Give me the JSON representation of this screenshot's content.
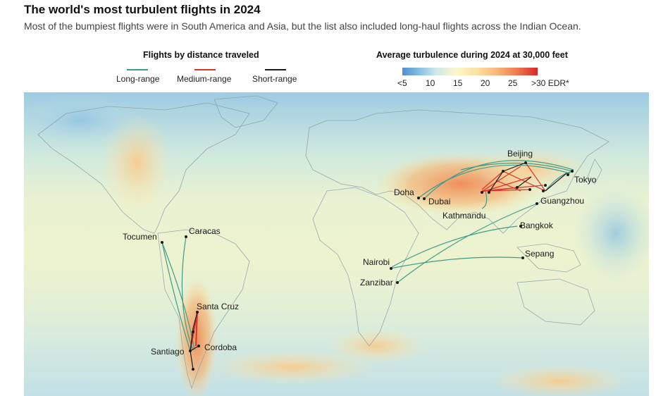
{
  "header": {
    "title": "The world's most turbulent flights in 2024",
    "subtitle": "Most of the bumpiest flights were in South America and Asia, but the list also included long-haul flights across the Indian Ocean."
  },
  "legend_routes": {
    "title": "Flights by distance traveled",
    "items": [
      {
        "label": "Long-range",
        "color": "#3f9c8a"
      },
      {
        "label": "Medium-range",
        "color": "#d8342b"
      },
      {
        "label": "Short-range",
        "color": "#1a1a1a"
      }
    ]
  },
  "legend_scale": {
    "title": "Average turbulence during 2024 at 30,000 feet",
    "ticks": [
      "<5",
      "10",
      "15",
      "20",
      "25",
      ">30 EDR*"
    ]
  },
  "cities": {
    "beijing": "Beijing",
    "tokyo": "Tokyo",
    "doha": "Doha",
    "dubai": "Dubai",
    "guangzhou": "Guangzhou",
    "kathmandu": "Kathmandu",
    "bangkok": "Bangkok",
    "sepang": "Sepang",
    "nairobi": "Nairobi",
    "zanzibar": "Zanzibar",
    "tocumen": "Tocumen",
    "caracas": "Caracas",
    "santa_cruz": "Santa Cruz",
    "santiago": "Santiago",
    "cordoba": "Cordoba"
  }
}
